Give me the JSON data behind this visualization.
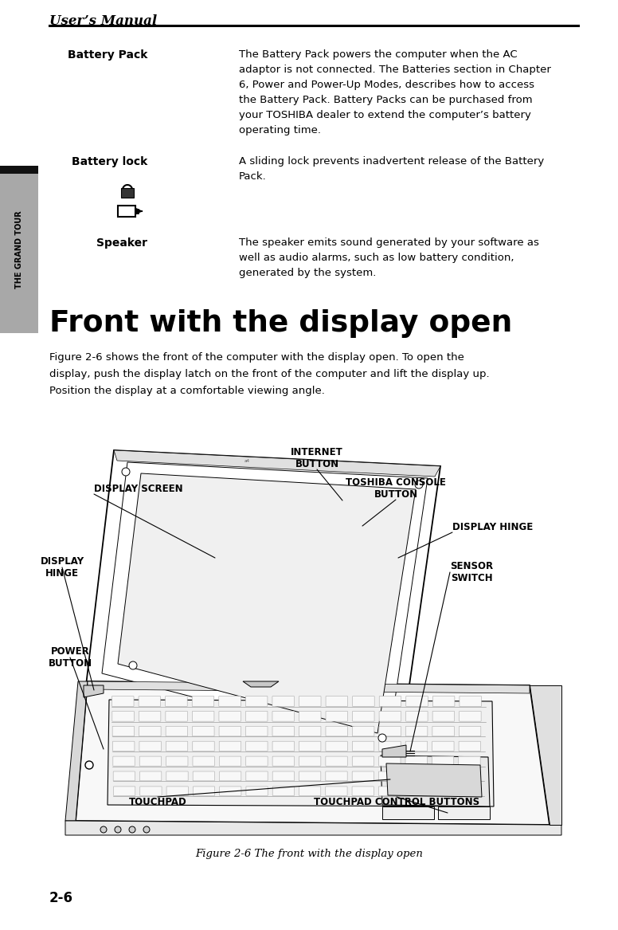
{
  "bg_color": "#ffffff",
  "header_title": "User’s Manual",
  "sidebar_color": "#a8a8a8",
  "sidebar_text": "THE GRAND TOUR",
  "battery_pack_label": "Battery Pack",
  "battery_pack_text_lines": [
    "The Battery Pack powers the computer when the AC",
    "adaptor is not connected. The Batteries section in Chapter",
    "6, Power and Power-Up Modes, describes how to access",
    "the Battery Pack. Battery Packs can be purchased from",
    "your TOSHIBA dealer to extend the computer’s battery",
    "operating time."
  ],
  "battery_lock_label": "Battery lock",
  "battery_lock_text_lines": [
    "A sliding lock prevents inadvertent release of the Battery",
    "Pack."
  ],
  "speaker_label": "Speaker",
  "speaker_text_lines": [
    "The speaker emits sound generated by your software as",
    "well as audio alarms, such as low battery condition,",
    "generated by the system."
  ],
  "section_title": "Front with the display open",
  "section_para_lines": [
    "Figure 2-6 shows the front of the computer with the display open. To open the",
    "display, push the display latch on the front of the computer and lift the display up.",
    "Position the display at a comfortable viewing angle."
  ],
  "figure_caption": "Figure 2-6 The front with the display open",
  "page_number": "2-6"
}
